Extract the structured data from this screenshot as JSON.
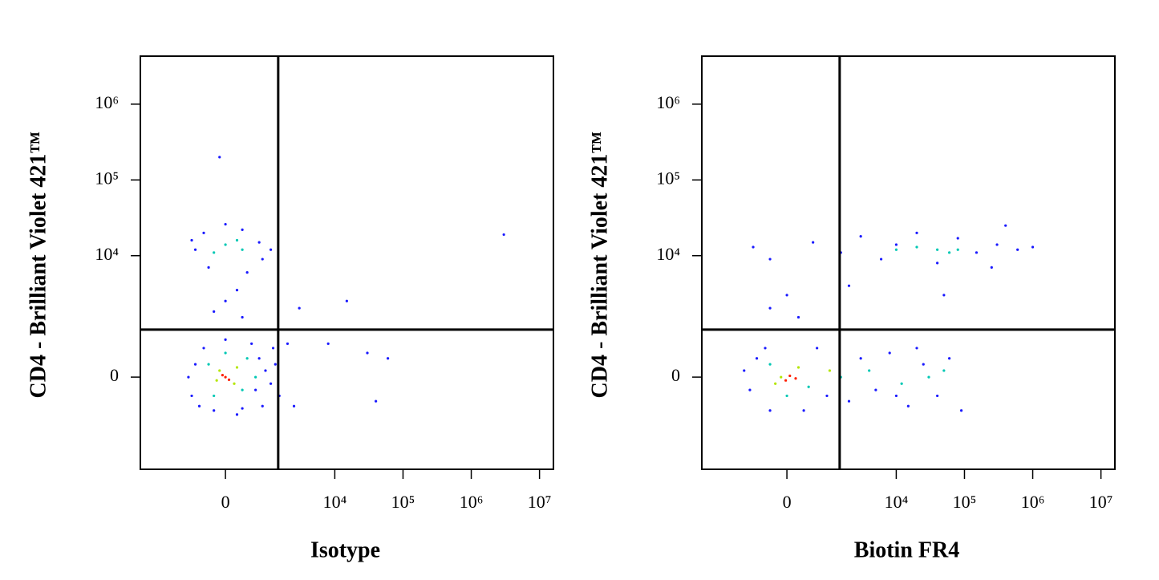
{
  "chart_data": [
    {
      "type": "scatter",
      "x_label": "Isotype",
      "y_label": "CD4 - Brilliant Violet 421™",
      "xlim": [
        -4400,
        16000000
      ],
      "ylim": [
        -4100,
        4300000
      ],
      "xticks": [
        0,
        {
          "value": 10000,
          "label": "10⁴"
        },
        {
          "value": 100000,
          "label": "10⁵"
        },
        {
          "value": 1000000,
          "label": "10⁶"
        },
        {
          "value": 10000000,
          "label": "10⁷"
        }
      ],
      "yticks": [
        0,
        {
          "value": 10000,
          "label": "10⁴"
        },
        {
          "value": 100000,
          "label": "10⁵"
        },
        {
          "value": 1000000,
          "label": "10⁶"
        }
      ],
      "gate": {
        "x": 1440,
        "y": 1000
      },
      "series": [
        {
          "color": "#1a1aff",
          "x": [
            -700,
            -600,
            -400,
            -200,
            300,
            600,
            700,
            500,
            0,
            -800,
            900,
            1100,
            1300,
            200,
            -500,
            800,
            1500,
            1200,
            -600,
            -400,
            300,
            700,
            800,
            -300,
            400,
            0,
            -700,
            1100,
            0,
            200,
            -200,
            300,
            3000,
            8000,
            15000,
            30000,
            60000,
            40000,
            3000000,
            2000,
            2500,
            -100
          ],
          "values": [
            -300,
            200,
            500,
            -600,
            -550,
            -200,
            300,
            600,
            700,
            0,
            100,
            -100,
            200,
            -700,
            -500,
            -500,
            -300,
            500,
            12000,
            20000,
            22000,
            15000,
            9000,
            7000,
            6000,
            26000,
            16000,
            12000,
            2500,
            3500,
            1800,
            1500,
            2000,
            600,
            2500,
            400,
            300,
            -400,
            19000,
            600,
            -500,
            200000
          ]
        },
        {
          "color": "#00c8b4",
          "x": [
            -300,
            300,
            400,
            -200,
            600,
            0,
            0,
            -200,
            200,
            300
          ],
          "values": [
            200,
            -200,
            300,
            -300,
            0,
            400,
            14000,
            11000,
            16000,
            12000
          ]
        },
        {
          "color": "#b4e600",
          "x": [
            -100,
            150,
            200,
            -150
          ],
          "values": [
            100,
            -100,
            150,
            -50
          ]
        },
        {
          "color": "#ff2000",
          "x": [
            0,
            60,
            -50
          ],
          "values": [
            0,
            -40,
            30
          ]
        }
      ]
    },
    {
      "type": "scatter",
      "x_label": "Biotin FR4",
      "y_label": "CD4 - Brilliant Violet 421™",
      "xlim": [
        -4400,
        16000000
      ],
      "ylim": [
        -4100,
        4300000
      ],
      "xticks": [
        0,
        {
          "value": 10000,
          "label": "10⁴"
        },
        {
          "value": 100000,
          "label": "10⁵"
        },
        {
          "value": 1000000,
          "label": "10⁶"
        },
        {
          "value": 10000000,
          "label": "10⁷"
        }
      ],
      "yticks": [
        0,
        {
          "value": 10000,
          "label": "10⁴"
        },
        {
          "value": 100000,
          "label": "10⁵"
        },
        {
          "value": 1000000,
          "label": "10⁶"
        }
      ],
      "gate": {
        "x": 1440,
        "y": 1000
      },
      "series": [
        {
          "color": "#1a1aff",
          "x": [
            -800,
            -600,
            -300,
            300,
            600,
            -400,
            900,
            -1000,
            2000,
            3000,
            5000,
            8000,
            15000,
            25000,
            40000,
            60000,
            90000,
            20000,
            10000,
            -700,
            -300,
            500,
            1500,
            3000,
            6000,
            10000,
            20000,
            40000,
            80000,
            150000,
            300000,
            600000,
            1000000,
            400000,
            250000,
            0,
            -300,
            200,
            2000,
            50000
          ],
          "values": [
            -200,
            300,
            -600,
            -600,
            500,
            500,
            -300,
            100,
            -400,
            300,
            -200,
            400,
            -500,
            200,
            -300,
            300,
            -600,
            500,
            -300,
            13000,
            9000,
            15000,
            11000,
            18000,
            9000,
            14000,
            20000,
            8000,
            17000,
            11000,
            14000,
            12000,
            13000,
            25000,
            7000,
            3000,
            2000,
            1500,
            4000,
            3000
          ]
        },
        {
          "color": "#00c8b4",
          "x": [
            -300,
            400,
            0,
            1500,
            4000,
            12000,
            30000,
            50000,
            20000,
            40000,
            60000,
            10000,
            80000
          ],
          "values": [
            200,
            -150,
            -300,
            0,
            100,
            -100,
            0,
            100,
            13000,
            12000,
            11000,
            12000,
            12000
          ]
        },
        {
          "color": "#b4e600",
          "x": [
            -100,
            200,
            -200,
            1000
          ],
          "values": [
            0,
            150,
            -100,
            100
          ]
        },
        {
          "color": "#ff2000",
          "x": [
            50,
            -20,
            150
          ],
          "values": [
            20,
            -50,
            -20
          ]
        }
      ]
    }
  ]
}
